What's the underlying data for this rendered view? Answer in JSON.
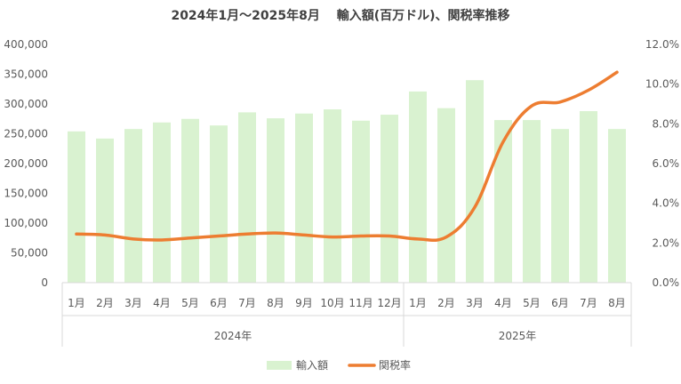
{
  "chart_data": {
    "type": "bar+line",
    "title": "2024年1月～2025年8月　 輸入額(百万ドル)、関税率推移",
    "categories": [
      "1月",
      "2月",
      "3月",
      "4月",
      "5月",
      "6月",
      "7月",
      "8月",
      "9月",
      "10月",
      "11月",
      "12月",
      "1月",
      "2月",
      "3月",
      "4月",
      "5月",
      "6月",
      "7月",
      "8月"
    ],
    "year_groups": [
      {
        "label": "2024年",
        "start": 0,
        "count": 12
      },
      {
        "label": "2025年",
        "start": 12,
        "count": 8
      }
    ],
    "series": [
      {
        "name": "輸入額",
        "type": "bar",
        "axis": "left",
        "color": "#d9f2d0",
        "values": [
          254000,
          242000,
          258000,
          269000,
          275000,
          264000,
          286000,
          276000,
          284000,
          291000,
          272000,
          282000,
          321000,
          293000,
          340000,
          273000,
          273000,
          258000,
          288000,
          258000
        ]
      },
      {
        "name": "関税率",
        "type": "line",
        "axis": "right",
        "color": "#ed7d31",
        "values": [
          2.45,
          2.4,
          2.2,
          2.15,
          2.25,
          2.35,
          2.45,
          2.5,
          2.4,
          2.3,
          2.35,
          2.35,
          2.2,
          2.3,
          3.8,
          7.1,
          8.9,
          9.1,
          9.7,
          10.6
        ]
      }
    ],
    "y_left": {
      "min": 0,
      "max": 400000,
      "ticks": [
        "0",
        "50,000",
        "100,000",
        "150,000",
        "200,000",
        "250,000",
        "300,000",
        "350,000",
        "400,000"
      ]
    },
    "y_right": {
      "min": 0,
      "max": 12,
      "ticks": [
        "0.0%",
        "2.0%",
        "4.0%",
        "6.0%",
        "8.0%",
        "10.0%",
        "12.0%"
      ]
    },
    "legend": {
      "position": "bottom",
      "items": [
        {
          "label": "輸入額",
          "color": "#d9f2d0",
          "marker": "box"
        },
        {
          "label": "関税率",
          "color": "#ed7d31",
          "marker": "line"
        }
      ]
    },
    "grid": false
  }
}
